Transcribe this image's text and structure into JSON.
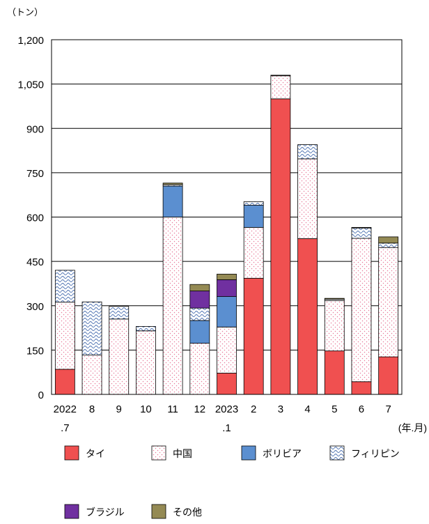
{
  "chart_data": {
    "type": "bar",
    "stacked": true,
    "unit_label": "（トン）",
    "x_unit_label": "(年.月)",
    "ylim": [
      0,
      1200
    ],
    "yticks": [
      0,
      150,
      300,
      450,
      600,
      750,
      900,
      1050,
      1200
    ],
    "ytick_labels": [
      "0",
      "150",
      "300",
      "450",
      "600",
      "750",
      "900",
      "1,050",
      "1,200"
    ],
    "categories": [
      [
        "2022",
        ".7"
      ],
      [
        "8"
      ],
      [
        "9"
      ],
      [
        "10"
      ],
      [
        "11"
      ],
      [
        "12"
      ],
      [
        "2023",
        ".1"
      ],
      [
        "2"
      ],
      [
        "3"
      ],
      [
        "4"
      ],
      [
        "5"
      ],
      [
        "6"
      ],
      [
        "7"
      ]
    ],
    "grid": "horizontal",
    "legend_position": "bottom",
    "series": [
      {
        "name": "タイ",
        "color": "#f05050",
        "pattern": "solid",
        "values": [
          85,
          0,
          0,
          0,
          0,
          0,
          72,
          393,
          1000,
          527,
          147,
          43,
          127
        ]
      },
      {
        "name": "中国",
        "color": "#ffffff",
        "pattern": "dots",
        "values": [
          227,
          133,
          255,
          215,
          600,
          173,
          156,
          172,
          78,
          270,
          170,
          485,
          370
        ]
      },
      {
        "name": "ボリビア",
        "color": "#5b8fd0",
        "pattern": "solid",
        "values": [
          0,
          0,
          0,
          0,
          105,
          77,
          103,
          75,
          0,
          0,
          0,
          0,
          0
        ]
      },
      {
        "name": "フィリピン",
        "color": "#ffffff",
        "pattern": "waves",
        "values": [
          108,
          180,
          43,
          15,
          5,
          42,
          0,
          12,
          0,
          48,
          5,
          35,
          15
        ]
      },
      {
        "name": "ブラジル",
        "color": "#7030a0",
        "pattern": "solid",
        "values": [
          0,
          0,
          0,
          0,
          0,
          58,
          57,
          0,
          0,
          0,
          0,
          0,
          0
        ]
      },
      {
        "name": "その他",
        "color": "#948a54",
        "pattern": "solid",
        "values": [
          0,
          0,
          0,
          0,
          5,
          22,
          19,
          0,
          2,
          0,
          3,
          2,
          21
        ]
      }
    ]
  }
}
